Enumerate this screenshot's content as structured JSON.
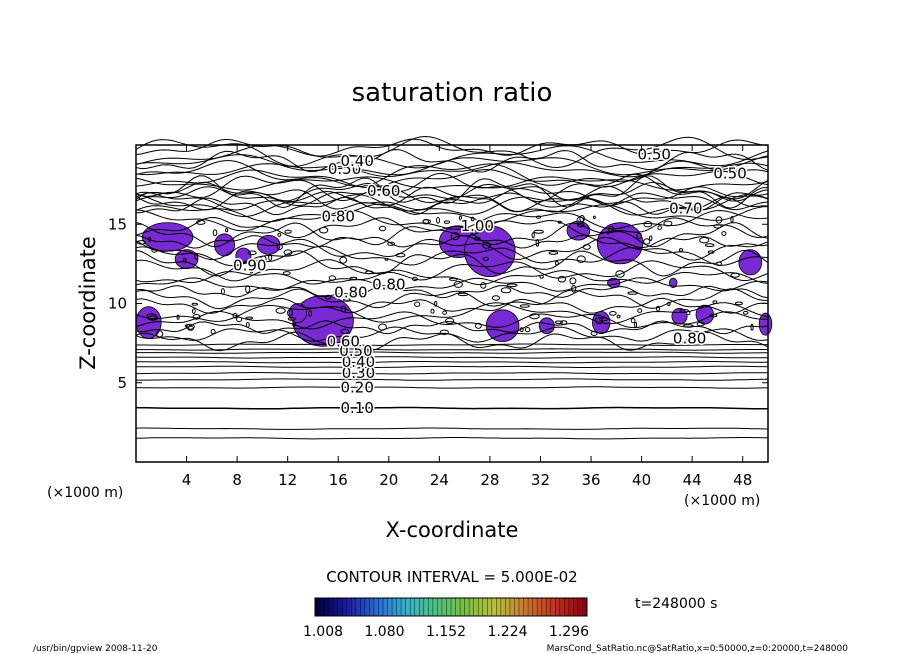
{
  "chart_data": {
    "type": "contour",
    "title": "saturation ratio",
    "xlabel": "X-coordinate",
    "ylabel": "Z-coordinate",
    "x_unit": "(×1000 m)",
    "z_unit": "(×1000 m)",
    "xlim": [
      0,
      50
    ],
    "ylim": [
      0,
      20
    ],
    "x_ticks": [
      "4",
      "8",
      "12",
      "16",
      "20",
      "24",
      "28",
      "32",
      "36",
      "40",
      "44",
      "48"
    ],
    "y_ticks": [
      "5",
      "10",
      "15"
    ],
    "contour_labels": [
      {
        "text": "0.10",
        "x": 17.5,
        "z": 3.4
      },
      {
        "text": "0.20",
        "x": 17.5,
        "z": 4.7
      },
      {
        "text": "0.30",
        "x": 17.6,
        "z": 5.6
      },
      {
        "text": "0.40",
        "x": 17.6,
        "z": 6.3
      },
      {
        "text": "0.50",
        "x": 17.4,
        "z": 7.0
      },
      {
        "text": "0.60",
        "x": 16.4,
        "z": 7.6
      },
      {
        "text": "0.80",
        "x": 17.0,
        "z": 10.7
      },
      {
        "text": "0.80",
        "x": 20.0,
        "z": 11.2
      },
      {
        "text": "0.80",
        "x": 43.8,
        "z": 7.8
      },
      {
        "text": "0.90",
        "x": 9.0,
        "z": 12.4
      },
      {
        "text": "1.00",
        "x": 27.0,
        "z": 14.9
      },
      {
        "text": "0.60",
        "x": 19.6,
        "z": 17.1
      },
      {
        "text": "0.80",
        "x": 16.0,
        "z": 15.5
      },
      {
        "text": "0.70",
        "x": 43.5,
        "z": 16.0
      },
      {
        "text": "0.50",
        "x": 16.5,
        "z": 18.5
      },
      {
        "text": "0.40",
        "x": 17.5,
        "z": 19.0
      },
      {
        "text": "0.50",
        "x": 41.0,
        "z": 19.4
      },
      {
        "text": "0.50",
        "x": 47.0,
        "z": 18.2
      }
    ],
    "contour_interval_text": "CONTOUR INTERVAL = 5.000E-02",
    "colorbar": {
      "labels": [
        "1.008",
        "1.080",
        "1.152",
        "1.224",
        "1.296"
      ],
      "colors": [
        "#000040",
        "#1a1aa0",
        "#2a6ad0",
        "#38b0c8",
        "#50c080",
        "#78c040",
        "#b8c040",
        "#c87830",
        "#c03020",
        "#900010"
      ]
    },
    "fill_color": "#7a2ad4",
    "time_text": "t=248000 s"
  },
  "footer": {
    "left": "/usr/bin/gpview   2008-11-20",
    "right": "MarsCond_SatRatio.nc@SatRatio,x=0:50000,z=0:20000,t=248000"
  }
}
